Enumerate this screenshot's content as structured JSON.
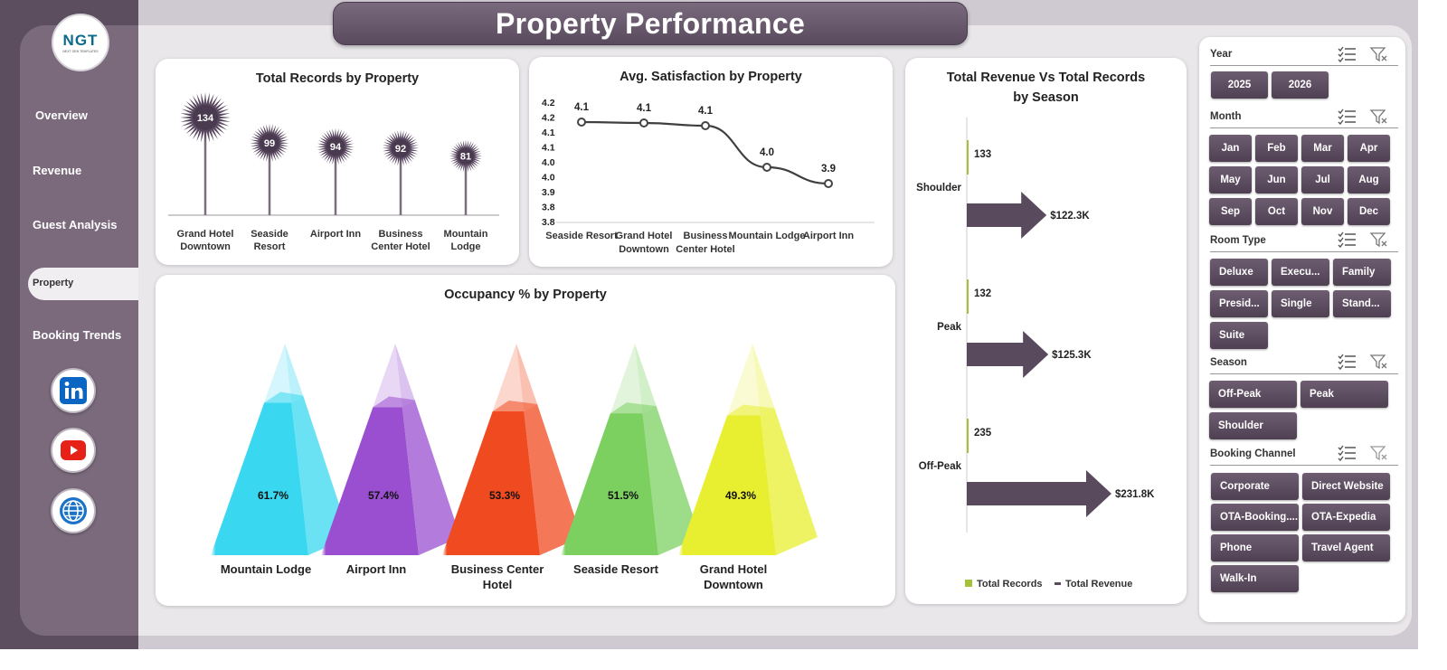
{
  "page_title": "Property Performance",
  "logo": {
    "text": "NGT",
    "subtext": "NEXT GEN TEMPLATES"
  },
  "nav": {
    "items": [
      "Overview",
      "Revenue",
      "Guest Analysis",
      "Property",
      "Booking Trends"
    ],
    "active": "Property"
  },
  "social": [
    "linkedin-icon",
    "youtube-icon",
    "globe-icon"
  ],
  "colors": {
    "accent": "#5f4f62",
    "sidebar": "#7a6a7c",
    "linkedin": "#0a66c2",
    "youtube": "#e62117"
  },
  "charts": {
    "records": {
      "title": "Total Records by Property",
      "chart_data": {
        "type": "bar",
        "categories": [
          "Grand Hotel Downtown",
          "Seaside Resort",
          "Airport Inn",
          "Business Center Hotel",
          "Mountain Lodge"
        ],
        "values": [
          134,
          99,
          94,
          92,
          81
        ]
      }
    },
    "satisfaction": {
      "title": "Avg. Satisfaction by Property",
      "chart_data": {
        "type": "line",
        "categories": [
          "Seaside Resort",
          "Grand Hotel Downtown",
          "Business Center Hotel",
          "Mountain Lodge",
          "Airport Inn"
        ],
        "values": [
          4.1,
          4.1,
          4.1,
          4.0,
          3.9
        ],
        "data_labels": [
          "4.1",
          "4.1",
          "4.1",
          "4.0",
          "3.9"
        ],
        "y_ticks": [
          "4.2",
          "4.2",
          "4.1",
          "4.1",
          "4.0",
          "4.0",
          "3.9",
          "3.8",
          "3.8"
        ],
        "ylim": [
          3.8,
          4.2
        ]
      }
    },
    "occupancy": {
      "title": "Occupancy % by Property",
      "chart_data": {
        "type": "bar",
        "categories": [
          "Mountain Lodge",
          "Airport Inn",
          "Business Center Hotel",
          "Seaside Resort",
          "Grand Hotel Downtown"
        ],
        "values": [
          61.7,
          57.4,
          53.3,
          51.5,
          49.3
        ],
        "data_labels": [
          "61.7%",
          "57.4%",
          "53.3%",
          "51.5%",
          "49.3%"
        ],
        "colors": [
          "#3ad8f0",
          "#9a4fd0",
          "#f04a20",
          "#7cd060",
          "#e8ef30"
        ]
      }
    },
    "season": {
      "title_line1": "Total Revenue Vs Total Records",
      "title_line2": "by Season",
      "chart_data": {
        "type": "bar",
        "categories": [
          "Shoulder",
          "Peak",
          "Off-Peak"
        ],
        "series": [
          {
            "name": "Total Records",
            "values": [
              133,
              132,
              235
            ]
          },
          {
            "name": "Total Revenue",
            "values": [
              122.3,
              125.3,
              231.8
            ],
            "labels": [
              "$122.3K",
              "$125.3K",
              "$231.8K"
            ]
          }
        ],
        "legend": "bottom"
      },
      "legend": [
        "Total Records",
        "Total Revenue"
      ]
    }
  },
  "slicers": {
    "year": {
      "title": "Year",
      "options": [
        "2025",
        "2026"
      ]
    },
    "month": {
      "title": "Month",
      "options": [
        "Jan",
        "Feb",
        "Mar",
        "Apr",
        "May",
        "Jun",
        "Jul",
        "Aug",
        "Sep",
        "Oct",
        "Nov",
        "Dec"
      ]
    },
    "room_type": {
      "title": "Room Type",
      "options": [
        "Deluxe",
        "Execu...",
        "Family",
        "Presid...",
        "Single",
        "Stand...",
        "Suite"
      ]
    },
    "season": {
      "title": "Season",
      "options": [
        "Off-Peak",
        "Peak",
        "Shoulder"
      ]
    },
    "booking_channel": {
      "title": "Booking Channel",
      "options": [
        "Corporate",
        "Direct Website",
        "OTA-Booking....",
        "OTA-Expedia",
        "Phone",
        "Travel Agent",
        "Walk-In"
      ]
    }
  }
}
